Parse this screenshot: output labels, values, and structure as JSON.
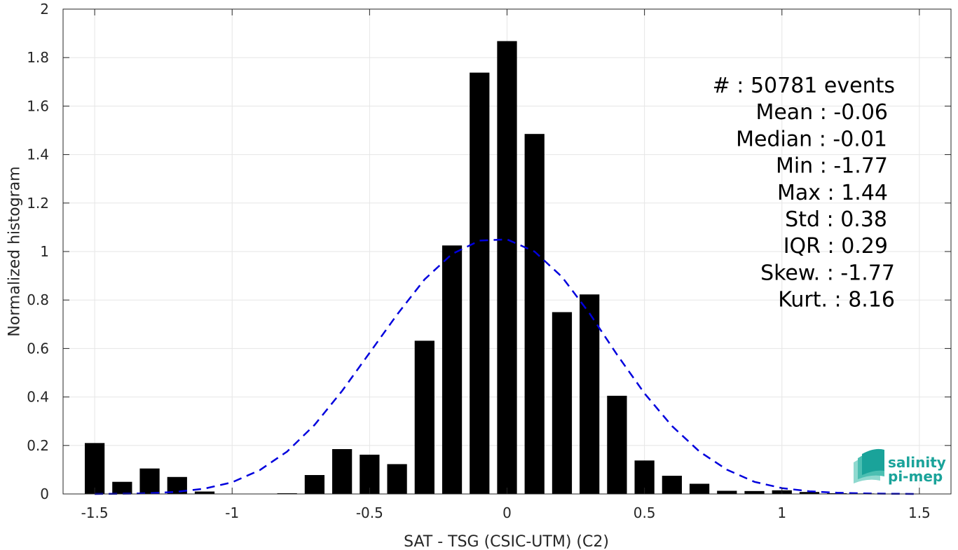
{
  "chart_data": {
    "type": "bar",
    "title": "",
    "xlabel": "SAT - TSG (CSIC-UTM) (C2)",
    "ylabel": "Normalized histogram",
    "xlim": [
      -1.615,
      1.615
    ],
    "ylim": [
      0,
      2
    ],
    "xticks": [
      -1.5,
      -1,
      -0.5,
      0,
      0.5,
      1,
      1.5
    ],
    "xtick_labels": [
      "-1.5",
      "-1",
      "-0.5",
      "0",
      "0.5",
      "1",
      "1.5"
    ],
    "yticks": [
      0,
      0.2,
      0.4,
      0.6,
      0.8,
      1,
      1.2,
      1.4,
      1.6,
      1.8,
      2
    ],
    "ytick_labels": [
      "0",
      "0.2",
      "0.4",
      "0.6",
      "0.8",
      "1",
      "1.2",
      "1.4",
      "1.6",
      "1.8",
      "2"
    ],
    "grid": true,
    "bin_width": 0.1,
    "bar_color": "#000000",
    "series": [
      {
        "type": "bar",
        "x": [
          -1.5,
          -1.4,
          -1.3,
          -1.2,
          -1.1,
          -1.0,
          -0.9,
          -0.8,
          -0.7,
          -0.6,
          -0.5,
          -0.4,
          -0.3,
          -0.2,
          -0.1,
          0.0,
          0.1,
          0.2,
          0.3,
          0.4,
          0.5,
          0.6,
          0.7,
          0.8,
          0.9,
          1.0,
          1.1,
          1.2,
          1.3,
          1.4,
          1.5
        ],
        "values": [
          0.21,
          0.05,
          0.105,
          0.07,
          0.01,
          0.0,
          0.0,
          0.003,
          0.078,
          0.185,
          0.162,
          0.123,
          0.632,
          1.025,
          1.738,
          1.868,
          1.485,
          0.75,
          0.823,
          0.405,
          0.138,
          0.075,
          0.042,
          0.013,
          0.012,
          0.015,
          0.008,
          0.003,
          0.002,
          0.001,
          0.0
        ]
      },
      {
        "type": "line",
        "style": "dashed",
        "color": "#0000dd",
        "x": [
          -1.5,
          -1.4,
          -1.3,
          -1.2,
          -1.1,
          -1.0,
          -0.9,
          -0.8,
          -0.7,
          -0.6,
          -0.5,
          -0.4,
          -0.3,
          -0.2,
          -0.1,
          0.0,
          0.1,
          0.2,
          0.3,
          0.4,
          0.5,
          0.6,
          0.7,
          0.8,
          0.9,
          1.0,
          1.1,
          1.2,
          1.3,
          1.4,
          1.5
        ],
        "values": [
          0.0,
          0.001,
          0.003,
          0.009,
          0.022,
          0.048,
          0.098,
          0.175,
          0.285,
          0.425,
          0.582,
          0.74,
          0.885,
          0.99,
          1.045,
          1.05,
          1.0,
          0.895,
          0.745,
          0.575,
          0.415,
          0.28,
          0.175,
          0.1,
          0.05,
          0.024,
          0.011,
          0.005,
          0.002,
          0.001,
          0.0
        ]
      }
    ],
    "annotations": [
      "#  : 50781 events",
      "Mean : -0.06",
      "Median : -0.01",
      "Min : -1.77",
      "Max : 1.44",
      "Std : 0.38",
      "IQR : 0.29",
      "Skew. : -1.77",
      "Kurt. : 8.16"
    ]
  },
  "logo": {
    "line1": "salinity",
    "line2": "pi-mep",
    "color": "#1aa39a"
  }
}
